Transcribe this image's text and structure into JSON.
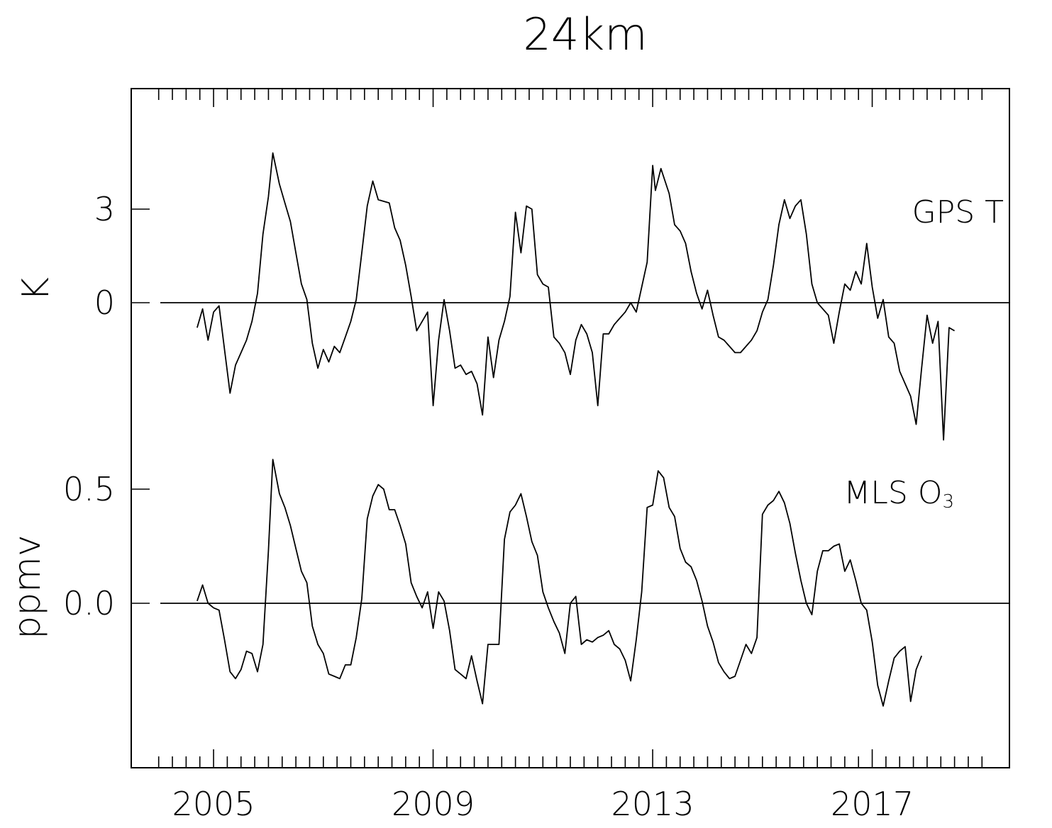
{
  "chart_data": {
    "type": "line",
    "title": "24km",
    "x_tick_labels": [
      "2005",
      "2009",
      "2013",
      "2017"
    ],
    "x_ticks": [
      2005,
      2009,
      2013,
      2017
    ],
    "xlim": [
      2003.5,
      2019.5
    ],
    "grid": false,
    "series": [
      {
        "name": "GPS T",
        "ylabel": "K",
        "y_ticks": [
          3,
          0
        ],
        "y_tick_labels": [
          "3",
          "0"
        ],
        "ylim": [
          -4.97,
          5.68
        ],
        "baseline": 0,
        "color": "#000000",
        "points": [
          [
            2004.7,
            -0.8
          ],
          [
            2004.8,
            -0.2
          ],
          [
            2004.9,
            -1.2
          ],
          [
            2005.0,
            -0.3
          ],
          [
            2005.1,
            -0.1
          ],
          [
            2005.2,
            -1.5
          ],
          [
            2005.3,
            -2.9
          ],
          [
            2005.4,
            -2.0
          ],
          [
            2005.5,
            -1.6
          ],
          [
            2005.6,
            -1.2
          ],
          [
            2005.7,
            -0.6
          ],
          [
            2005.8,
            0.3
          ],
          [
            2005.9,
            2.2
          ],
          [
            2006.0,
            3.4
          ],
          [
            2006.08,
            4.8
          ],
          [
            2006.2,
            3.8
          ],
          [
            2006.3,
            3.2
          ],
          [
            2006.4,
            2.6
          ],
          [
            2006.5,
            1.6
          ],
          [
            2006.6,
            0.6
          ],
          [
            2006.7,
            0.1
          ],
          [
            2006.8,
            -1.3
          ],
          [
            2006.9,
            -2.1
          ],
          [
            2007.0,
            -1.5
          ],
          [
            2007.1,
            -1.9
          ],
          [
            2007.2,
            -1.4
          ],
          [
            2007.3,
            -1.6
          ],
          [
            2007.4,
            -1.1
          ],
          [
            2007.5,
            -0.6
          ],
          [
            2007.6,
            0.1
          ],
          [
            2007.7,
            1.6
          ],
          [
            2007.8,
            3.1
          ],
          [
            2007.9,
            3.9
          ],
          [
            2008.0,
            3.3
          ],
          [
            2008.2,
            3.2
          ],
          [
            2008.3,
            2.4
          ],
          [
            2008.4,
            2.0
          ],
          [
            2008.5,
            1.2
          ],
          [
            2008.6,
            0.2
          ],
          [
            2008.7,
            -0.9
          ],
          [
            2008.8,
            -0.6
          ],
          [
            2008.9,
            -0.3
          ],
          [
            2009.0,
            -3.3
          ],
          [
            2009.1,
            -1.2
          ],
          [
            2009.2,
            0.1
          ],
          [
            2009.3,
            -0.9
          ],
          [
            2009.4,
            -2.1
          ],
          [
            2009.5,
            -2.0
          ],
          [
            2009.6,
            -2.3
          ],
          [
            2009.7,
            -2.2
          ],
          [
            2009.8,
            -2.6
          ],
          [
            2009.9,
            -3.6
          ],
          [
            2010.0,
            -1.1
          ],
          [
            2010.1,
            -2.4
          ],
          [
            2010.2,
            -1.2
          ],
          [
            2010.3,
            -0.6
          ],
          [
            2010.4,
            0.2
          ],
          [
            2010.5,
            2.9
          ],
          [
            2010.6,
            1.6
          ],
          [
            2010.7,
            3.1
          ],
          [
            2010.8,
            3.0
          ],
          [
            2010.9,
            0.9
          ],
          [
            2011.0,
            0.6
          ],
          [
            2011.1,
            0.5
          ],
          [
            2011.2,
            -1.1
          ],
          [
            2011.3,
            -1.3
          ],
          [
            2011.4,
            -1.6
          ],
          [
            2011.5,
            -2.3
          ],
          [
            2011.6,
            -1.2
          ],
          [
            2011.7,
            -0.7
          ],
          [
            2011.8,
            -1.0
          ],
          [
            2011.9,
            -1.6
          ],
          [
            2012.0,
            -3.3
          ],
          [
            2012.1,
            -1.0
          ],
          [
            2012.2,
            -1.0
          ],
          [
            2012.3,
            -0.7
          ],
          [
            2012.4,
            -0.5
          ],
          [
            2012.5,
            -0.3
          ],
          [
            2012.6,
            0.0
          ],
          [
            2012.7,
            -0.3
          ],
          [
            2012.8,
            0.5
          ],
          [
            2012.9,
            1.3
          ],
          [
            2013.0,
            4.4
          ],
          [
            2013.05,
            3.6
          ],
          [
            2013.15,
            4.3
          ],
          [
            2013.3,
            3.5
          ],
          [
            2013.4,
            2.5
          ],
          [
            2013.5,
            2.3
          ],
          [
            2013.6,
            1.9
          ],
          [
            2013.7,
            1.0
          ],
          [
            2013.8,
            0.3
          ],
          [
            2013.9,
            -0.2
          ],
          [
            2014.0,
            0.4
          ],
          [
            2014.1,
            -0.4
          ],
          [
            2014.2,
            -1.1
          ],
          [
            2014.3,
            -1.2
          ],
          [
            2014.4,
            -1.4
          ],
          [
            2014.5,
            -1.6
          ],
          [
            2014.6,
            -1.6
          ],
          [
            2014.7,
            -1.4
          ],
          [
            2014.8,
            -1.2
          ],
          [
            2014.9,
            -0.9
          ],
          [
            2015.0,
            -0.3
          ],
          [
            2015.1,
            0.1
          ],
          [
            2015.2,
            1.2
          ],
          [
            2015.3,
            2.5
          ],
          [
            2015.4,
            3.3
          ],
          [
            2015.5,
            2.7
          ],
          [
            2015.6,
            3.1
          ],
          [
            2015.7,
            3.3
          ],
          [
            2015.8,
            2.2
          ],
          [
            2015.9,
            0.6
          ],
          [
            2016.0,
            0.0
          ],
          [
            2016.1,
            -0.2
          ],
          [
            2016.2,
            -0.4
          ],
          [
            2016.3,
            -1.3
          ],
          [
            2016.4,
            -0.3
          ],
          [
            2016.5,
            0.6
          ],
          [
            2016.6,
            0.4
          ],
          [
            2016.7,
            1.0
          ],
          [
            2016.8,
            0.6
          ],
          [
            2016.9,
            1.9
          ],
          [
            2017.0,
            0.5
          ],
          [
            2017.1,
            -0.5
          ],
          [
            2017.2,
            0.1
          ],
          [
            2017.3,
            -1.1
          ],
          [
            2017.4,
            -1.3
          ],
          [
            2017.5,
            -2.2
          ],
          [
            2017.6,
            -2.6
          ],
          [
            2017.7,
            -3.0
          ],
          [
            2017.8,
            -3.9
          ],
          [
            2017.9,
            -2.1
          ],
          [
            2018.0,
            -0.4
          ],
          [
            2018.1,
            -1.3
          ],
          [
            2018.2,
            -0.6
          ],
          [
            2018.3,
            -4.4
          ],
          [
            2018.4,
            -0.8
          ],
          [
            2018.5,
            -0.9
          ]
        ]
      },
      {
        "name": "MLS O₃",
        "ylabel": "ppmv",
        "y_ticks": [
          0.5,
          0.0
        ],
        "y_tick_labels": [
          "0.5",
          "0.0"
        ],
        "ylim": [
          -0.7,
          0.82
        ],
        "baseline": 0,
        "color": "#000000",
        "points": [
          [
            2004.7,
            0.01
          ],
          [
            2004.8,
            0.08
          ],
          [
            2004.9,
            0.0
          ],
          [
            2005.0,
            -0.02
          ],
          [
            2005.1,
            -0.03
          ],
          [
            2005.2,
            -0.16
          ],
          [
            2005.3,
            -0.3
          ],
          [
            2005.4,
            -0.33
          ],
          [
            2005.5,
            -0.29
          ],
          [
            2005.6,
            -0.21
          ],
          [
            2005.7,
            -0.22
          ],
          [
            2005.8,
            -0.3
          ],
          [
            2005.9,
            -0.18
          ],
          [
            2006.0,
            0.23
          ],
          [
            2006.08,
            0.63
          ],
          [
            2006.2,
            0.48
          ],
          [
            2006.3,
            0.42
          ],
          [
            2006.4,
            0.34
          ],
          [
            2006.5,
            0.24
          ],
          [
            2006.6,
            0.14
          ],
          [
            2006.7,
            0.09
          ],
          [
            2006.8,
            -0.1
          ],
          [
            2006.9,
            -0.18
          ],
          [
            2007.0,
            -0.22
          ],
          [
            2007.1,
            -0.31
          ],
          [
            2007.2,
            -0.32
          ],
          [
            2007.3,
            -0.33
          ],
          [
            2007.4,
            -0.27
          ],
          [
            2007.5,
            -0.27
          ],
          [
            2007.6,
            -0.15
          ],
          [
            2007.7,
            0.02
          ],
          [
            2007.8,
            0.37
          ],
          [
            2007.9,
            0.47
          ],
          [
            2008.0,
            0.52
          ],
          [
            2008.1,
            0.5
          ],
          [
            2008.2,
            0.41
          ],
          [
            2008.3,
            0.41
          ],
          [
            2008.4,
            0.34
          ],
          [
            2008.5,
            0.26
          ],
          [
            2008.6,
            0.09
          ],
          [
            2008.7,
            0.03
          ],
          [
            2008.8,
            -0.02
          ],
          [
            2008.9,
            0.05
          ],
          [
            2009.0,
            -0.11
          ],
          [
            2009.1,
            0.05
          ],
          [
            2009.2,
            0.01
          ],
          [
            2009.3,
            -0.12
          ],
          [
            2009.4,
            -0.29
          ],
          [
            2009.5,
            -0.31
          ],
          [
            2009.6,
            -0.33
          ],
          [
            2009.7,
            -0.23
          ],
          [
            2009.8,
            -0.34
          ],
          [
            2009.9,
            -0.44
          ],
          [
            2010.0,
            -0.18
          ],
          [
            2010.1,
            -0.18
          ],
          [
            2010.2,
            -0.18
          ],
          [
            2010.3,
            0.28
          ],
          [
            2010.4,
            0.4
          ],
          [
            2010.5,
            0.43
          ],
          [
            2010.6,
            0.48
          ],
          [
            2010.7,
            0.38
          ],
          [
            2010.8,
            0.27
          ],
          [
            2010.9,
            0.21
          ],
          [
            2011.0,
            0.05
          ],
          [
            2011.1,
            -0.02
          ],
          [
            2011.2,
            -0.08
          ],
          [
            2011.3,
            -0.13
          ],
          [
            2011.4,
            -0.22
          ],
          [
            2011.5,
            0.0
          ],
          [
            2011.6,
            0.03
          ],
          [
            2011.7,
            -0.18
          ],
          [
            2011.8,
            -0.16
          ],
          [
            2011.9,
            -0.17
          ],
          [
            2012.0,
            -0.15
          ],
          [
            2012.1,
            -0.14
          ],
          [
            2012.2,
            -0.12
          ],
          [
            2012.3,
            -0.18
          ],
          [
            2012.4,
            -0.2
          ],
          [
            2012.5,
            -0.25
          ],
          [
            2012.6,
            -0.34
          ],
          [
            2012.7,
            -0.16
          ],
          [
            2012.8,
            0.05
          ],
          [
            2012.9,
            0.42
          ],
          [
            2013.0,
            0.43
          ],
          [
            2013.1,
            0.58
          ],
          [
            2013.2,
            0.55
          ],
          [
            2013.3,
            0.42
          ],
          [
            2013.4,
            0.38
          ],
          [
            2013.5,
            0.24
          ],
          [
            2013.6,
            0.18
          ],
          [
            2013.7,
            0.16
          ],
          [
            2013.8,
            0.1
          ],
          [
            2013.9,
            0.01
          ],
          [
            2014.0,
            -0.1
          ],
          [
            2014.1,
            -0.17
          ],
          [
            2014.2,
            -0.26
          ],
          [
            2014.3,
            -0.3
          ],
          [
            2014.4,
            -0.33
          ],
          [
            2014.5,
            -0.32
          ],
          [
            2014.6,
            -0.25
          ],
          [
            2014.7,
            -0.18
          ],
          [
            2014.8,
            -0.22
          ],
          [
            2014.9,
            -0.15
          ],
          [
            2015.0,
            0.39
          ],
          [
            2015.1,
            0.43
          ],
          [
            2015.2,
            0.45
          ],
          [
            2015.3,
            0.49
          ],
          [
            2015.4,
            0.44
          ],
          [
            2015.5,
            0.35
          ],
          [
            2015.6,
            0.22
          ],
          [
            2015.7,
            0.1
          ],
          [
            2015.8,
            0.0
          ],
          [
            2015.9,
            -0.05
          ],
          [
            2016.0,
            0.14
          ],
          [
            2016.1,
            0.23
          ],
          [
            2016.2,
            0.23
          ],
          [
            2016.3,
            0.25
          ],
          [
            2016.4,
            0.26
          ],
          [
            2016.5,
            0.14
          ],
          [
            2016.6,
            0.19
          ],
          [
            2016.7,
            0.1
          ],
          [
            2016.8,
            0.0
          ],
          [
            2016.9,
            -0.03
          ],
          [
            2017.0,
            -0.17
          ],
          [
            2017.1,
            -0.36
          ],
          [
            2017.2,
            -0.45
          ],
          [
            2017.3,
            -0.34
          ],
          [
            2017.4,
            -0.24
          ],
          [
            2017.5,
            -0.21
          ],
          [
            2017.6,
            -0.19
          ],
          [
            2017.7,
            -0.43
          ],
          [
            2017.8,
            -0.29
          ],
          [
            2017.9,
            -0.23
          ]
        ]
      }
    ]
  }
}
